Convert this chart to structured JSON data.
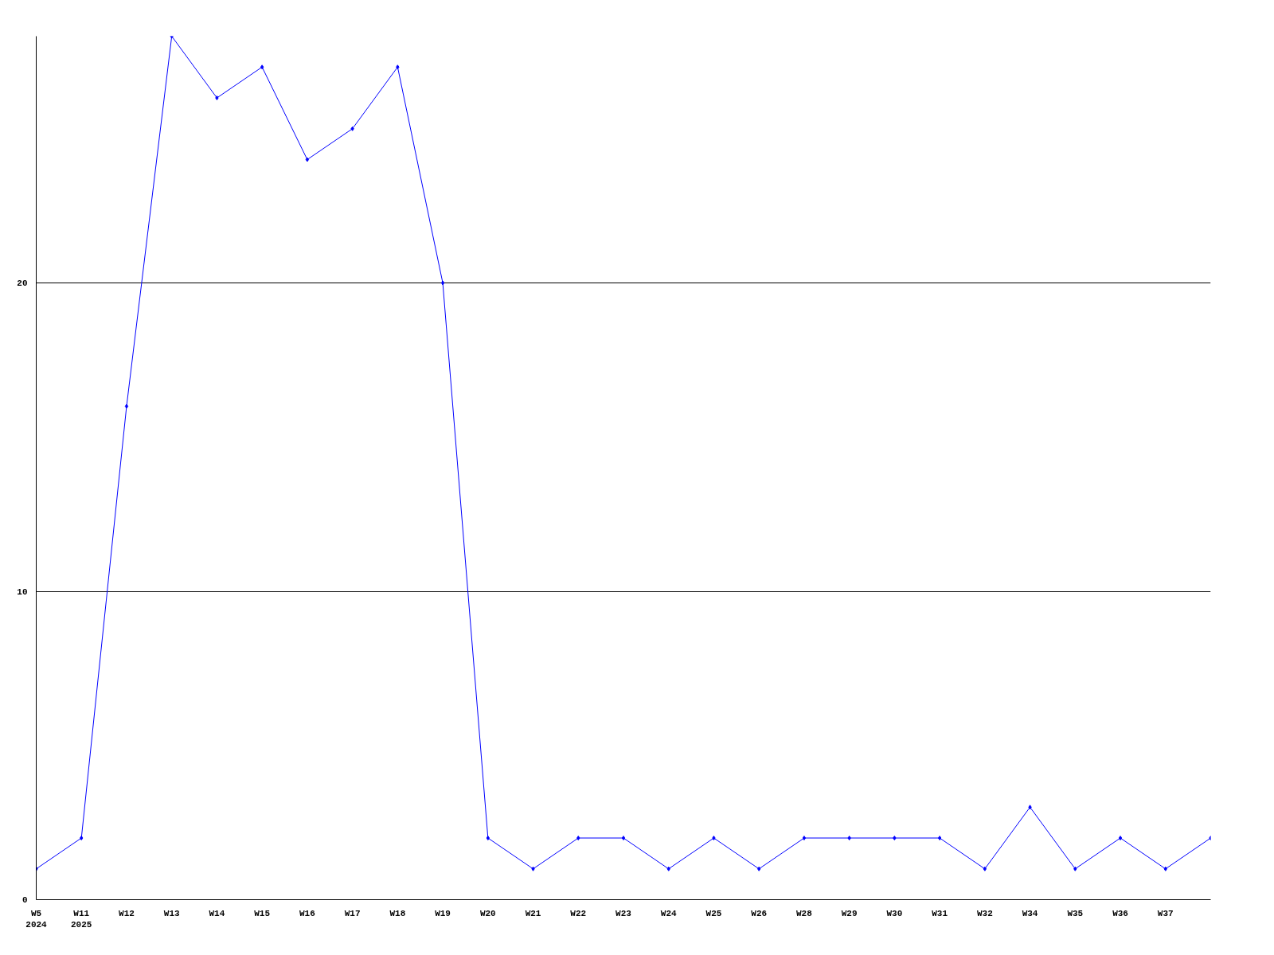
{
  "chart_data": {
    "type": "line",
    "categories": [
      "W5\n2024",
      "W11\n2025",
      "W12",
      "W13",
      "W14",
      "W15",
      "W16",
      "W17",
      "W18",
      "W19",
      "W20",
      "W21",
      "W22",
      "W23",
      "W24",
      "W25",
      "W26",
      "W28",
      "W29",
      "W30",
      "W31",
      "W32",
      "W34",
      "W35",
      "W36",
      "W37",
      null
    ],
    "series": [
      {
        "color": "#0000ff",
        "values": [
          1,
          2,
          16,
          28,
          26,
          27,
          24,
          25,
          27,
          20,
          2,
          1,
          2,
          2,
          1,
          2,
          1,
          2,
          2,
          2,
          2,
          1,
          3,
          1,
          2,
          1,
          2
        ]
      }
    ],
    "ylim": [
      0,
      28
    ],
    "yticks": [
      0,
      10,
      20
    ],
    "grid": "y",
    "marker": "diamond",
    "line_style": "solid"
  }
}
